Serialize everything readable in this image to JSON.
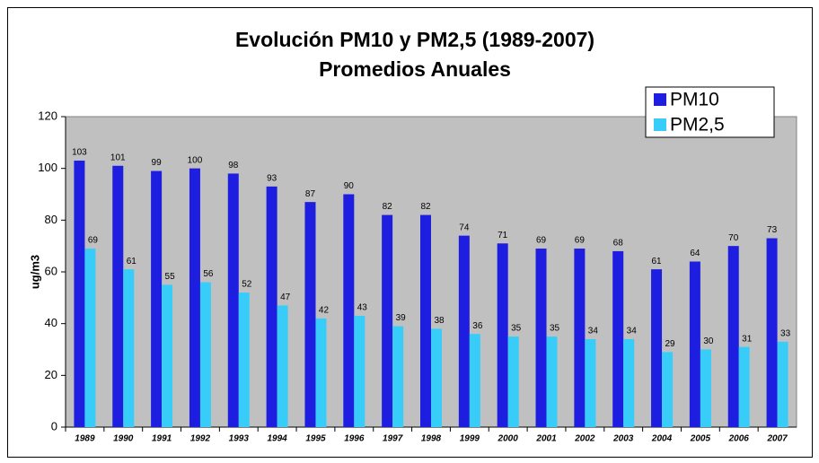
{
  "chart_data": {
    "type": "bar",
    "title": "Evolución PM10 y PM2,5 (1989-2007)",
    "subtitle": "Promedios Anuales",
    "y_label": "ug/m3",
    "categories": [
      "1989",
      "1990",
      "1991",
      "1992",
      "1993",
      "1994",
      "1995",
      "1996",
      "1997",
      "1998",
      "1999",
      "2000",
      "2001",
      "2002",
      "2003",
      "2004",
      "2005",
      "2006",
      "2007"
    ],
    "series": [
      {
        "name": "PM10",
        "color": "#1e1ee0",
        "values": [
          103,
          101,
          99,
          100,
          98,
          93,
          87,
          90,
          82,
          82,
          74,
          71,
          69,
          69,
          68,
          61,
          64,
          70,
          73
        ]
      },
      {
        "name": "PM2,5",
        "color": "#38cdf8",
        "values": [
          69,
          61,
          55,
          56,
          52,
          47,
          42,
          43,
          39,
          38,
          36,
          35,
          35,
          34,
          34,
          29,
          30,
          31,
          33
        ]
      }
    ],
    "ylim": [
      0,
      120
    ],
    "yticks": [
      0,
      20,
      40,
      60,
      80,
      100,
      120
    ],
    "legend": "upper right",
    "plot_background": "#c0c0c0"
  }
}
